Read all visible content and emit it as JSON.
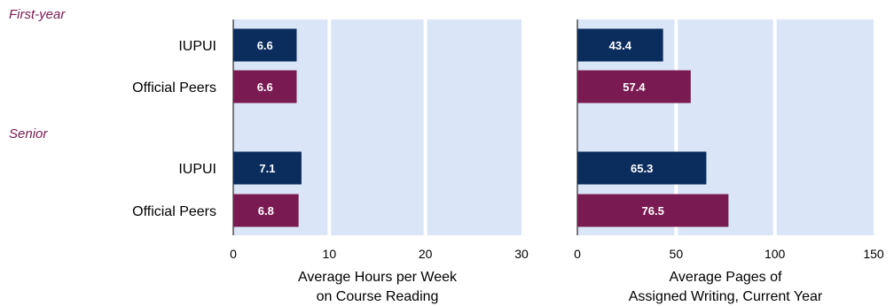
{
  "groups": [
    {
      "label": "First-year",
      "rows": [
        "IUPUI",
        "Official Peers"
      ]
    },
    {
      "label": "Senior",
      "rows": [
        "IUPUI",
        "Official Peers"
      ]
    }
  ],
  "colors": {
    "IUPUI": "#0b2d5e",
    "Official Peers": "#7a1a52",
    "group_label": "#7a1a52",
    "plot_background": "#dae5f7",
    "gridline": "#ffffff"
  },
  "chart_data": [
    {
      "type": "bar",
      "orientation": "horizontal",
      "categories": [
        "First-year IUPUI",
        "First-year Official Peers",
        "Senior IUPUI",
        "Senior Official Peers"
      ],
      "values": [
        6.6,
        6.6,
        7.1,
        6.8
      ],
      "value_labels": [
        "6.6",
        "6.6",
        "7.1",
        "6.8"
      ],
      "xlim": [
        0,
        30
      ],
      "ticks": [
        0,
        10,
        20,
        30
      ],
      "tick_labels": [
        "0",
        "10",
        "20",
        "30"
      ],
      "xlabel": [
        "Average Hours per Week",
        "on Course Reading"
      ],
      "grid": true
    },
    {
      "type": "bar",
      "orientation": "horizontal",
      "categories": [
        "First-year IUPUI",
        "First-year Official Peers",
        "Senior IUPUI",
        "Senior Official Peers"
      ],
      "values": [
        43.4,
        57.4,
        65.3,
        76.5
      ],
      "value_labels": [
        "43.4",
        "57.4",
        "65.3",
        "76.5"
      ],
      "xlim": [
        0,
        150
      ],
      "ticks": [
        0,
        50,
        100,
        150
      ],
      "tick_labels": [
        "0",
        "50",
        "100",
        "150"
      ],
      "xlabel": [
        "Average Pages of",
        "Assigned Writing, Current Year"
      ],
      "grid": true
    }
  ]
}
